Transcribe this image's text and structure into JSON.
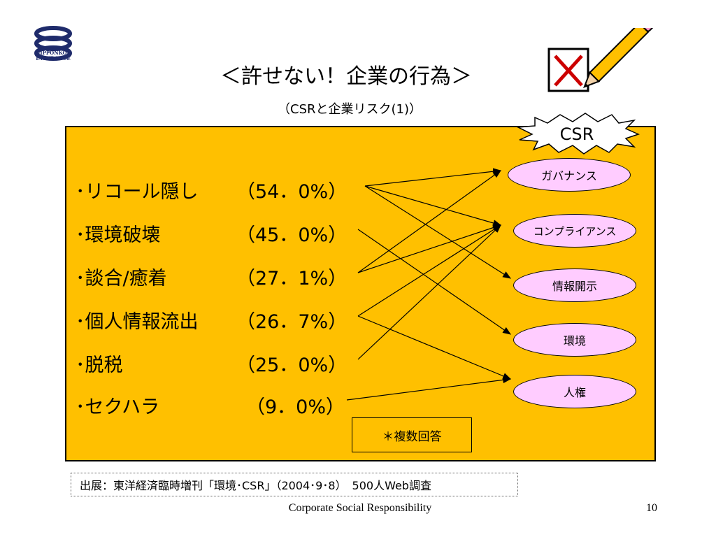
{
  "logo": {
    "name": "NIPPONKOA INSURANCE logo",
    "text": "NIPPONKOA\nINSURANCE",
    "color": "#1f2b6b"
  },
  "header": {
    "title": "＜許せない！企業の行為＞",
    "subtitle": "（CSRと企業リスク(1)）"
  },
  "csr_badge": {
    "label": "CSR"
  },
  "decoration": {
    "icon": "checkbox-cross-pencil-icon",
    "cross_color": "#cc0000",
    "pencil_color": "#ffc000"
  },
  "risks": [
    {
      "label": "･リコール隠し",
      "percent": "（54．0%）"
    },
    {
      "label": "･環境破壊",
      "percent": "（45．0%）"
    },
    {
      "label": "･談合/癒着",
      "percent": "（27．1%）"
    },
    {
      "label": "･個人情報流出",
      "percent": "（26．7%）"
    },
    {
      "label": "･脱税",
      "percent": "（25．0%）"
    },
    {
      "label": "･セクハラ",
      "percent": "（9．0%）"
    }
  ],
  "categories": [
    "ガバナンス",
    "コンプライアンス",
    "情報開示",
    "環境",
    "人権"
  ],
  "links": [
    {
      "from": 0,
      "to": 0
    },
    {
      "from": 0,
      "to": 1
    },
    {
      "from": 0,
      "to": 2
    },
    {
      "from": 1,
      "to": 3
    },
    {
      "from": 2,
      "to": 0
    },
    {
      "from": 2,
      "to": 1
    },
    {
      "from": 3,
      "to": 1
    },
    {
      "from": 3,
      "to": 4
    },
    {
      "from": 4,
      "to": 1
    },
    {
      "from": 5,
      "to": 4
    }
  ],
  "note": "＊複数回答",
  "source": "出展：東洋経済臨時増刊「環境･CSR」（2004･9･8）　500人Web調査",
  "footer": {
    "text": "Corporate Social Responsibility",
    "page": "10"
  },
  "colors": {
    "panel": "#ffc000",
    "oval": "#ffccff",
    "text": "#000000"
  }
}
